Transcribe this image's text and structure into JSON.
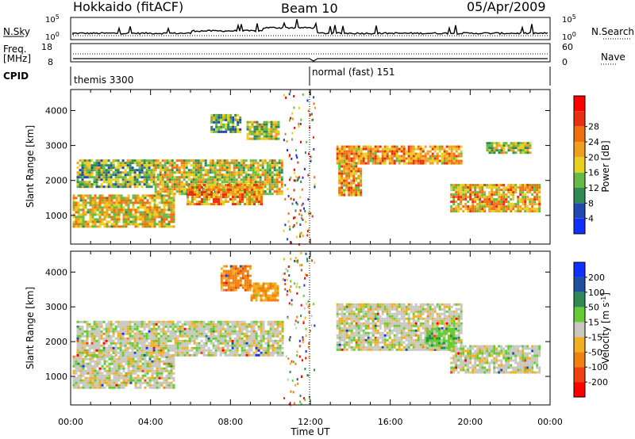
{
  "header": {
    "station": "Hokkaido (fitACF)",
    "beam": "Beam 10",
    "date": "05/Apr/2009"
  },
  "top_panels": {
    "nsky_label": "N.Sky",
    "nsky_ticks": [
      "10^5",
      "10^0"
    ],
    "nsearch_label": "N.Search",
    "freq_label_1": "Freq.",
    "freq_label_2": "[MHz]",
    "freq_ticks": [
      "18",
      "8"
    ],
    "nave_label": "Nave",
    "nave_ticks": [
      "60",
      "0"
    ],
    "cpid_label": "CPID",
    "cpid_segments": [
      "themis 3300",
      "normal (fast) 151"
    ]
  },
  "colors": {
    "power_scale": [
      "#1030ff",
      "#204ab0",
      "#2f8a56",
      "#66bb44",
      "#e8d020",
      "#f0a020",
      "#f07010",
      "#e83010",
      "#ff0000"
    ],
    "velocity_scale": [
      "#1030ff",
      "#2050a0",
      "#2f8a56",
      "#66cc33",
      "#c8c8c0",
      "#f0b020",
      "#f08010",
      "#f04010",
      "#ff0000"
    ]
  },
  "chart_data": [
    {
      "type": "heatmap",
      "name": "power-panel",
      "xlabel": "Time UT",
      "ylabel": "Slant Range [km]",
      "x_ticks": [
        "00:00",
        "04:00",
        "08:00",
        "12:00",
        "16:00",
        "20:00",
        "00:00"
      ],
      "x_range_hours": [
        0,
        24
      ],
      "y_ticks": [
        "1000",
        "2000",
        "3000",
        "4000"
      ],
      "y_range_km": [
        180,
        4600
      ],
      "colorbar_label": "Power [dB]",
      "colorbar_ticks": [
        "4",
        "8",
        "12",
        "16",
        "20",
        "24",
        "28"
      ],
      "colorbar_range": [
        0,
        30
      ],
      "regions": [
        {
          "t": [
            0.1,
            5.2
          ],
          "r": [
            650,
            1600
          ],
          "level": 0.55
        },
        {
          "t": [
            0.3,
            4.2
          ],
          "r": [
            1800,
            2600
          ],
          "level": 0.4
        },
        {
          "t": [
            4.2,
            10.6
          ],
          "r": [
            1600,
            2600
          ],
          "level": 0.5
        },
        {
          "t": [
            5.8,
            9.5
          ],
          "r": [
            1300,
            1900
          ],
          "level": 0.65
        },
        {
          "t": [
            7.0,
            8.5
          ],
          "r": [
            3400,
            3900
          ],
          "level": 0.35
        },
        {
          "t": [
            8.8,
            10.4
          ],
          "r": [
            3200,
            3700
          ],
          "level": 0.45
        },
        {
          "t": [
            13.3,
            19.5
          ],
          "r": [
            2500,
            3000
          ],
          "level": 0.65
        },
        {
          "t": [
            13.4,
            14.5
          ],
          "r": [
            1600,
            2500
          ],
          "level": 0.6
        },
        {
          "t": [
            19.0,
            23.5
          ],
          "r": [
            1100,
            1900
          ],
          "level": 0.6
        },
        {
          "t": [
            20.8,
            23.0
          ],
          "r": [
            2800,
            3100
          ],
          "level": 0.45
        }
      ]
    },
    {
      "type": "heatmap",
      "name": "velocity-panel",
      "xlabel": "Time UT",
      "ylabel": "Slant Range [km]",
      "x_ticks": [
        "00:00",
        "04:00",
        "08:00",
        "12:00",
        "16:00",
        "20:00",
        "00:00"
      ],
      "x_range_hours": [
        0,
        24
      ],
      "y_ticks": [
        "1000",
        "2000",
        "3000",
        "4000"
      ],
      "y_range_km": [
        180,
        4600
      ],
      "colorbar_label": "Velocity [m s^-1]",
      "colorbar_ticks": [
        "200",
        "100",
        "50",
        "15",
        "-15",
        "-50",
        "-100",
        "-200"
      ],
      "colorbar_range": [
        -250,
        250
      ],
      "regions": [
        {
          "t": [
            0.1,
            5.2
          ],
          "r": [
            650,
            1600
          ],
          "level": 0.5
        },
        {
          "t": [
            0.3,
            10.6
          ],
          "r": [
            1600,
            2600
          ],
          "level": 0.5
        },
        {
          "t": [
            7.5,
            9.0
          ],
          "r": [
            3500,
            4200
          ],
          "level": 0.72
        },
        {
          "t": [
            9.0,
            10.4
          ],
          "r": [
            3200,
            3700
          ],
          "level": 0.65
        },
        {
          "t": [
            13.3,
            19.5
          ],
          "r": [
            1800,
            3100
          ],
          "level": 0.5
        },
        {
          "t": [
            17.8,
            19.3
          ],
          "r": [
            1800,
            2400
          ],
          "level": 0.38
        },
        {
          "t": [
            19.0,
            23.5
          ],
          "r": [
            1100,
            1900
          ],
          "level": 0.5
        }
      ]
    }
  ]
}
